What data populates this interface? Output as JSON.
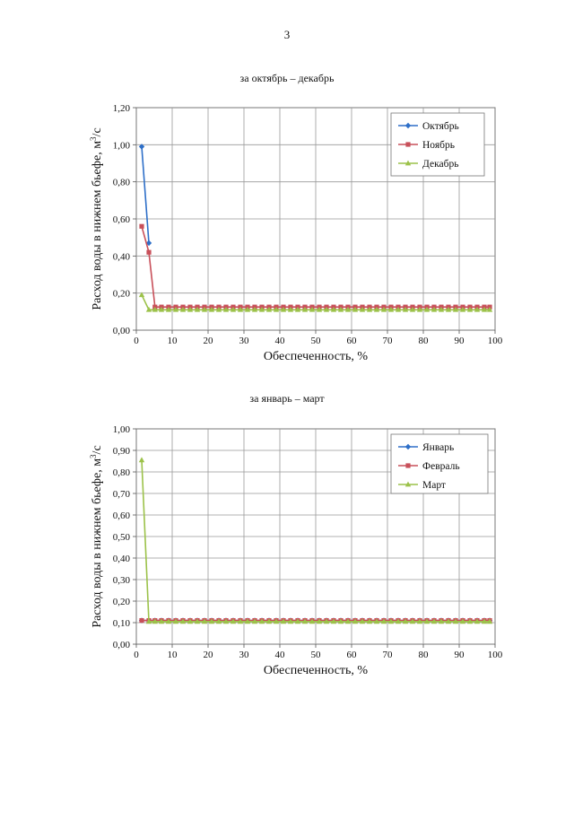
{
  "page": {
    "number": "3"
  },
  "chart_data": [
    {
      "type": "line",
      "title": "за октябрь – декабрь",
      "xlabel": "Обеспеченность, %",
      "ylabel_main": "Расход воды в нижнем бьефе, м",
      "ylabel_sup": "3",
      "ylabel_tail": "/с",
      "xlim": [
        0,
        100
      ],
      "ylim": [
        0,
        1.2
      ],
      "xticks": [
        "0",
        "10",
        "20",
        "30",
        "40",
        "50",
        "60",
        "70",
        "80",
        "90",
        "100"
      ],
      "yticks": [
        "0,00",
        "0,20",
        "0,40",
        "0,60",
        "0,80",
        "1,00",
        "1,20"
      ],
      "grid": true,
      "legend_position": "top-right",
      "series": [
        {
          "name": "Октябрь",
          "color": "#2e6fc8",
          "marker": "diamond",
          "points": [
            [
              1.5,
              0.99
            ],
            [
              3.5,
              0.47
            ]
          ]
        },
        {
          "name": "Ноябрь",
          "color": "#c8505a",
          "marker": "square",
          "points": [
            [
              1.5,
              0.56
            ],
            [
              3.5,
              0.42
            ],
            [
              5.2,
              0.125
            ],
            [
              7,
              0.125
            ],
            [
              9,
              0.125
            ],
            [
              11,
              0.125
            ],
            [
              13,
              0.125
            ],
            [
              15,
              0.125
            ],
            [
              17,
              0.125
            ],
            [
              19,
              0.125
            ],
            [
              21,
              0.125
            ],
            [
              23,
              0.125
            ],
            [
              25,
              0.125
            ],
            [
              27,
              0.125
            ],
            [
              29,
              0.125
            ],
            [
              31,
              0.125
            ],
            [
              33,
              0.125
            ],
            [
              35,
              0.125
            ],
            [
              37,
              0.125
            ],
            [
              39,
              0.125
            ],
            [
              41,
              0.125
            ],
            [
              43,
              0.125
            ],
            [
              45,
              0.125
            ],
            [
              47,
              0.125
            ],
            [
              49,
              0.125
            ],
            [
              51,
              0.125
            ],
            [
              53,
              0.125
            ],
            [
              55,
              0.125
            ],
            [
              57,
              0.125
            ],
            [
              59,
              0.125
            ],
            [
              61,
              0.125
            ],
            [
              63,
              0.125
            ],
            [
              65,
              0.125
            ],
            [
              67,
              0.125
            ],
            [
              69,
              0.125
            ],
            [
              71,
              0.125
            ],
            [
              73,
              0.125
            ],
            [
              75,
              0.125
            ],
            [
              77,
              0.125
            ],
            [
              79,
              0.125
            ],
            [
              81,
              0.125
            ],
            [
              83,
              0.125
            ],
            [
              85,
              0.125
            ],
            [
              87,
              0.125
            ],
            [
              89,
              0.125
            ],
            [
              91,
              0.125
            ],
            [
              93,
              0.125
            ],
            [
              95,
              0.125
            ],
            [
              97,
              0.125
            ],
            [
              98.5,
              0.125
            ]
          ]
        },
        {
          "name": "Декабрь",
          "color": "#9cc24a",
          "marker": "triangle",
          "points": [
            [
              1.5,
              0.19
            ],
            [
              3.5,
              0.11
            ],
            [
              5.2,
              0.11
            ],
            [
              7,
              0.11
            ],
            [
              9,
              0.11
            ],
            [
              11,
              0.11
            ],
            [
              13,
              0.11
            ],
            [
              15,
              0.11
            ],
            [
              17,
              0.11
            ],
            [
              19,
              0.11
            ],
            [
              21,
              0.11
            ],
            [
              23,
              0.11
            ],
            [
              25,
              0.11
            ],
            [
              27,
              0.11
            ],
            [
              29,
              0.11
            ],
            [
              31,
              0.11
            ],
            [
              33,
              0.11
            ],
            [
              35,
              0.11
            ],
            [
              37,
              0.11
            ],
            [
              39,
              0.11
            ],
            [
              41,
              0.11
            ],
            [
              43,
              0.11
            ],
            [
              45,
              0.11
            ],
            [
              47,
              0.11
            ],
            [
              49,
              0.11
            ],
            [
              51,
              0.11
            ],
            [
              53,
              0.11
            ],
            [
              55,
              0.11
            ],
            [
              57,
              0.11
            ],
            [
              59,
              0.11
            ],
            [
              61,
              0.11
            ],
            [
              63,
              0.11
            ],
            [
              65,
              0.11
            ],
            [
              67,
              0.11
            ],
            [
              69,
              0.11
            ],
            [
              71,
              0.11
            ],
            [
              73,
              0.11
            ],
            [
              75,
              0.11
            ],
            [
              77,
              0.11
            ],
            [
              79,
              0.11
            ],
            [
              81,
              0.11
            ],
            [
              83,
              0.11
            ],
            [
              85,
              0.11
            ],
            [
              87,
              0.11
            ],
            [
              89,
              0.11
            ],
            [
              91,
              0.11
            ],
            [
              93,
              0.11
            ],
            [
              95,
              0.11
            ],
            [
              97,
              0.11
            ],
            [
              98.5,
              0.11
            ]
          ]
        }
      ]
    },
    {
      "type": "line",
      "title": "за январь – март",
      "xlabel": "Обеспеченность, %",
      "ylabel_main": "Расход воды в нижнем бьефе, м",
      "ylabel_sup": "3",
      "ylabel_tail": "/с",
      "xlim": [
        0,
        100
      ],
      "ylim": [
        0,
        1.0
      ],
      "xticks": [
        "0",
        "10",
        "20",
        "30",
        "40",
        "50",
        "60",
        "70",
        "80",
        "90",
        "100"
      ],
      "yticks": [
        "0,00",
        "0,10",
        "0,20",
        "0,30",
        "0,40",
        "0,50",
        "0,60",
        "0,70",
        "0,80",
        "0,90",
        "1,00"
      ],
      "grid": true,
      "legend_position": "top-right",
      "series": [
        {
          "name": "Январь",
          "color": "#2e6fc8",
          "marker": "diamond",
          "points": [
            [
              1.5,
              0.11
            ],
            [
              3.5,
              0.11
            ],
            [
              5.2,
              0.11
            ],
            [
              7,
              0.11
            ],
            [
              9,
              0.11
            ],
            [
              11,
              0.11
            ],
            [
              13,
              0.11
            ],
            [
              15,
              0.11
            ],
            [
              17,
              0.11
            ],
            [
              19,
              0.11
            ],
            [
              21,
              0.11
            ],
            [
              23,
              0.11
            ],
            [
              25,
              0.11
            ],
            [
              27,
              0.11
            ],
            [
              29,
              0.11
            ],
            [
              31,
              0.11
            ],
            [
              33,
              0.11
            ],
            [
              35,
              0.11
            ],
            [
              37,
              0.11
            ],
            [
              39,
              0.11
            ],
            [
              41,
              0.11
            ],
            [
              43,
              0.11
            ],
            [
              45,
              0.11
            ],
            [
              47,
              0.11
            ],
            [
              49,
              0.11
            ],
            [
              51,
              0.11
            ],
            [
              53,
              0.11
            ],
            [
              55,
              0.11
            ],
            [
              57,
              0.11
            ],
            [
              59,
              0.11
            ],
            [
              61,
              0.11
            ],
            [
              63,
              0.11
            ],
            [
              65,
              0.11
            ],
            [
              67,
              0.11
            ],
            [
              69,
              0.11
            ],
            [
              71,
              0.11
            ],
            [
              73,
              0.11
            ],
            [
              75,
              0.11
            ],
            [
              77,
              0.11
            ],
            [
              79,
              0.11
            ],
            [
              81,
              0.11
            ],
            [
              83,
              0.11
            ],
            [
              85,
              0.11
            ],
            [
              87,
              0.11
            ],
            [
              89,
              0.11
            ],
            [
              91,
              0.11
            ],
            [
              93,
              0.11
            ],
            [
              95,
              0.11
            ],
            [
              97,
              0.11
            ],
            [
              98.5,
              0.11
            ]
          ]
        },
        {
          "name": "Февраль",
          "color": "#c8505a",
          "marker": "square",
          "points": [
            [
              1.5,
              0.11
            ],
            [
              3.5,
              0.11
            ],
            [
              5.2,
              0.11
            ],
            [
              7,
              0.11
            ],
            [
              9,
              0.11
            ],
            [
              11,
              0.11
            ],
            [
              13,
              0.11
            ],
            [
              15,
              0.11
            ],
            [
              17,
              0.11
            ],
            [
              19,
              0.11
            ],
            [
              21,
              0.11
            ],
            [
              23,
              0.11
            ],
            [
              25,
              0.11
            ],
            [
              27,
              0.11
            ],
            [
              29,
              0.11
            ],
            [
              31,
              0.11
            ],
            [
              33,
              0.11
            ],
            [
              35,
              0.11
            ],
            [
              37,
              0.11
            ],
            [
              39,
              0.11
            ],
            [
              41,
              0.11
            ],
            [
              43,
              0.11
            ],
            [
              45,
              0.11
            ],
            [
              47,
              0.11
            ],
            [
              49,
              0.11
            ],
            [
              51,
              0.11
            ],
            [
              53,
              0.11
            ],
            [
              55,
              0.11
            ],
            [
              57,
              0.11
            ],
            [
              59,
              0.11
            ],
            [
              61,
              0.11
            ],
            [
              63,
              0.11
            ],
            [
              65,
              0.11
            ],
            [
              67,
              0.11
            ],
            [
              69,
              0.11
            ],
            [
              71,
              0.11
            ],
            [
              73,
              0.11
            ],
            [
              75,
              0.11
            ],
            [
              77,
              0.11
            ],
            [
              79,
              0.11
            ],
            [
              81,
              0.11
            ],
            [
              83,
              0.11
            ],
            [
              85,
              0.11
            ],
            [
              87,
              0.11
            ],
            [
              89,
              0.11
            ],
            [
              91,
              0.11
            ],
            [
              93,
              0.11
            ],
            [
              95,
              0.11
            ],
            [
              97,
              0.11
            ],
            [
              98.5,
              0.11
            ]
          ]
        },
        {
          "name": "Март",
          "color": "#9cc24a",
          "marker": "triangle",
          "points": [
            [
              1.5,
              0.855
            ],
            [
              3.5,
              0.105
            ],
            [
              5.2,
              0.105
            ],
            [
              7,
              0.105
            ],
            [
              9,
              0.105
            ],
            [
              11,
              0.105
            ],
            [
              13,
              0.105
            ],
            [
              15,
              0.105
            ],
            [
              17,
              0.105
            ],
            [
              19,
              0.105
            ],
            [
              21,
              0.105
            ],
            [
              23,
              0.105
            ],
            [
              25,
              0.105
            ],
            [
              27,
              0.105
            ],
            [
              29,
              0.105
            ],
            [
              31,
              0.105
            ],
            [
              33,
              0.105
            ],
            [
              35,
              0.105
            ],
            [
              37,
              0.105
            ],
            [
              39,
              0.105
            ],
            [
              41,
              0.105
            ],
            [
              43,
              0.105
            ],
            [
              45,
              0.105
            ],
            [
              47,
              0.105
            ],
            [
              49,
              0.105
            ],
            [
              51,
              0.105
            ],
            [
              53,
              0.105
            ],
            [
              55,
              0.105
            ],
            [
              57,
              0.105
            ],
            [
              59,
              0.105
            ],
            [
              61,
              0.105
            ],
            [
              63,
              0.105
            ],
            [
              65,
              0.105
            ],
            [
              67,
              0.105
            ],
            [
              69,
              0.105
            ],
            [
              71,
              0.105
            ],
            [
              73,
              0.105
            ],
            [
              75,
              0.105
            ],
            [
              77,
              0.105
            ],
            [
              79,
              0.105
            ],
            [
              81,
              0.105
            ],
            [
              83,
              0.105
            ],
            [
              85,
              0.105
            ],
            [
              87,
              0.105
            ],
            [
              89,
              0.105
            ],
            [
              91,
              0.105
            ],
            [
              93,
              0.105
            ],
            [
              95,
              0.105
            ],
            [
              97,
              0.105
            ],
            [
              98.5,
              0.105
            ]
          ]
        }
      ]
    }
  ]
}
